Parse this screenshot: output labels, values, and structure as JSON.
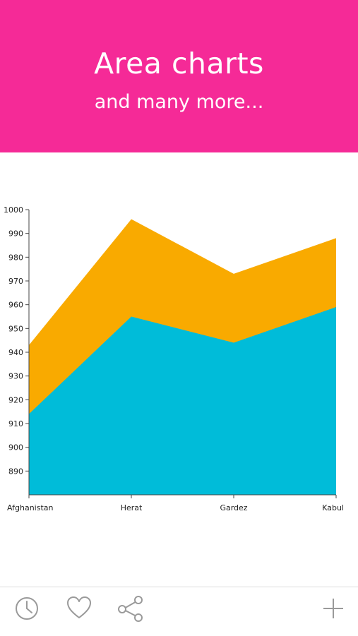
{
  "header": {
    "title": "Area charts",
    "subtitle": "and many more..."
  },
  "colors": {
    "banner": "#f52a97",
    "series_bottom": "#00bcd9",
    "series_top": "#f9aa00",
    "icon": "#9a9a9a"
  },
  "toolbar": {
    "icons": [
      "clock-icon",
      "heart-icon",
      "share-icon",
      "plus-icon"
    ]
  },
  "chart_data": {
    "type": "area",
    "stacked": false,
    "categories": [
      "Afghanistan",
      "Herat",
      "Gardez",
      "Kabul"
    ],
    "series": [
      {
        "values": [
          943,
          996,
          973,
          988
        ],
        "color": "#f9aa00"
      },
      {
        "values": [
          914,
          955,
          944,
          959
        ],
        "color": "#00bcd9"
      }
    ],
    "ylim": [
      880,
      1000
    ],
    "yticks": [
      890,
      900,
      910,
      920,
      930,
      940,
      950,
      960,
      970,
      980,
      990,
      1000
    ],
    "grid": false,
    "legend": "none"
  }
}
